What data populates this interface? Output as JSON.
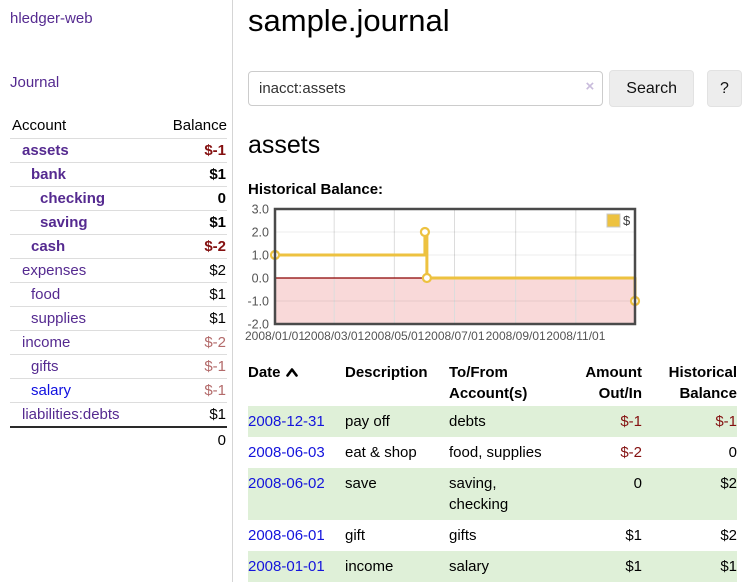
{
  "sidebar": {
    "brand": "hledger-web",
    "journal_link": "Journal",
    "accounts": {
      "headers": [
        "Account",
        "Balance"
      ],
      "rows": [
        {
          "name": "assets",
          "depth": 1,
          "bold": true,
          "balance": "$-1",
          "balance_class": "neg-strong"
        },
        {
          "name": "bank",
          "depth": 2,
          "bold": true,
          "balance": "$1",
          "balance_class": ""
        },
        {
          "name": "checking",
          "depth": 3,
          "bold": true,
          "balance": "0",
          "balance_class": ""
        },
        {
          "name": "saving",
          "depth": 3,
          "bold": true,
          "balance": "$1",
          "balance_class": ""
        },
        {
          "name": "cash",
          "depth": 2,
          "bold": true,
          "balance": "$-2",
          "balance_class": "neg-strong"
        },
        {
          "name": "expenses",
          "depth": 1,
          "bold": false,
          "balance": "$2",
          "balance_class": ""
        },
        {
          "name": "food",
          "depth": 2,
          "bold": false,
          "balance": "$1",
          "balance_class": ""
        },
        {
          "name": "supplies",
          "depth": 2,
          "bold": false,
          "balance": "$1",
          "balance_class": ""
        },
        {
          "name": "income",
          "depth": 1,
          "bold": false,
          "balance": "$-2",
          "balance_class": "neg-soft"
        },
        {
          "name": "gifts",
          "depth": 2,
          "bold": false,
          "balance": "$-1",
          "balance_class": "neg-soft"
        },
        {
          "name": "salary",
          "depth": 2,
          "bold": false,
          "link_color": "blue",
          "balance": "$-1",
          "balance_class": "neg-soft"
        },
        {
          "name": "liabilities:debts",
          "depth": 1,
          "bold": false,
          "balance": "$1",
          "balance_class": ""
        }
      ],
      "total": "0"
    }
  },
  "main": {
    "title": "sample.journal",
    "search": {
      "value": "inacct:assets",
      "clear_icon": "×",
      "button_label": "Search",
      "help_label": "?"
    },
    "account_heading": "assets",
    "chart_label": "Historical Balance:"
  },
  "chart_data": {
    "type": "line",
    "step": true,
    "title": "Historical Balance",
    "x_range": [
      "2008-01-01",
      "2008-12-31"
    ],
    "y_range": [
      -2,
      3
    ],
    "x_tick_dates": [
      "2008-01-01",
      "2008-03-01",
      "2008-05-01",
      "2008-07-01",
      "2008-09-01",
      "2008-11-01"
    ],
    "x_tick_labels": [
      "2008/01/01",
      "2008/03/01",
      "2008/05/01",
      "2008/07/01",
      "2008/09/01",
      "2008/11/01"
    ],
    "y_ticks": [
      "3.0",
      "2.0",
      "1.0",
      "0.0",
      "-1.0",
      "-2.0"
    ],
    "series": [
      {
        "name": "$",
        "color": "#edc240",
        "points": [
          {
            "x": "2008-01-01",
            "y": 1
          },
          {
            "x": "2008-06-01",
            "y": 2
          },
          {
            "x": "2008-06-03",
            "y": 0
          },
          {
            "x": "2008-12-31",
            "y": -1
          }
        ]
      }
    ],
    "legend": [
      {
        "label": "$",
        "color": "#edc240"
      }
    ],
    "legend_position": "top-right",
    "grid": true,
    "negative_fill": "#f9d9d9",
    "zero_line_color": "#8b0000",
    "border_color": "#4a4a4a",
    "tick_label_color": "#545454"
  },
  "register": {
    "headers": [
      {
        "lines": [
          "Date",
          ""
        ],
        "align": "left",
        "sortable": true
      },
      {
        "lines": [
          "Description",
          ""
        ],
        "align": "left",
        "sortable": false
      },
      {
        "lines": [
          "To/From",
          "Account(s)"
        ],
        "align": "left",
        "sortable": false
      },
      {
        "lines": [
          "Amount",
          "Out/In"
        ],
        "align": "right",
        "sortable": false
      },
      {
        "lines": [
          "Historical",
          "Balance"
        ],
        "align": "right",
        "sortable": false
      }
    ],
    "rows": [
      {
        "date": "2008-12-31",
        "description": "pay off",
        "accounts": "debts",
        "amount": "$-1",
        "amount_neg": true,
        "balance": "$-1",
        "balance_neg": true
      },
      {
        "date": "2008-06-03",
        "description": "eat & shop",
        "accounts": "food, supplies",
        "amount": "$-2",
        "amount_neg": true,
        "balance": "0",
        "balance_neg": false
      },
      {
        "date": "2008-06-02",
        "description": "save",
        "accounts": "saving, checking",
        "amount": "0",
        "amount_neg": false,
        "balance": "$2",
        "balance_neg": false
      },
      {
        "date": "2008-06-01",
        "description": "gift",
        "accounts": "gifts",
        "amount": "$1",
        "amount_neg": false,
        "balance": "$2",
        "balance_neg": false
      },
      {
        "date": "2008-01-01",
        "description": "income",
        "accounts": "salary",
        "amount": "$1",
        "amount_neg": false,
        "balance": "$1",
        "balance_neg": false
      }
    ]
  }
}
